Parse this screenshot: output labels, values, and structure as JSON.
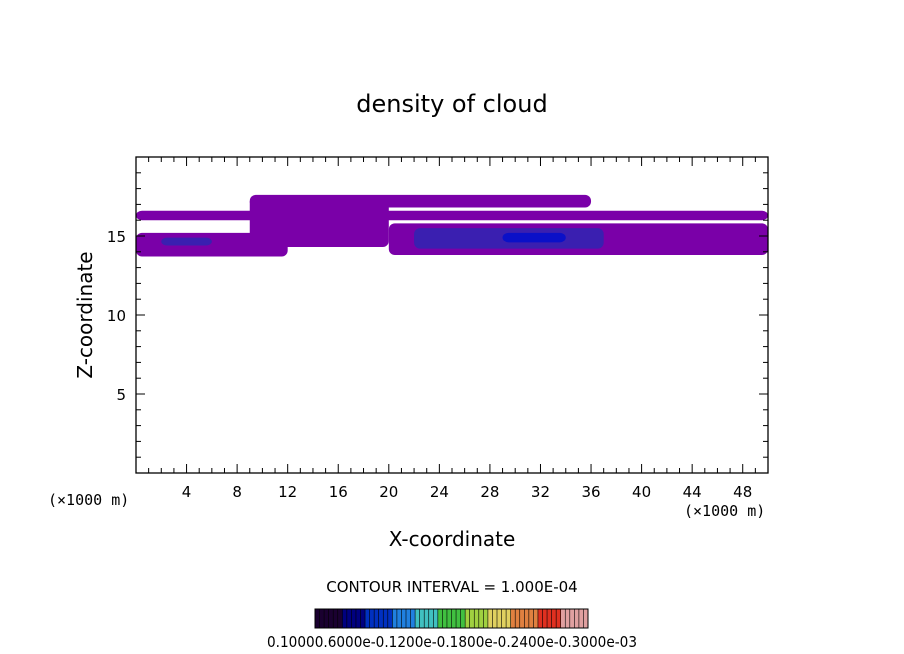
{
  "chart_data": {
    "type": "heatmap",
    "title": "density of cloud",
    "xlabel": "X-coordinate",
    "ylabel": "Z-coordinate",
    "x_unit_left": "(×1000 m)",
    "x_unit_right": "(×1000 m)",
    "xlim": [
      0,
      50
    ],
    "ylim": [
      0,
      20
    ],
    "x_ticks": [
      4,
      8,
      12,
      16,
      20,
      24,
      28,
      32,
      36,
      40,
      44,
      48
    ],
    "y_ticks": [
      5,
      10,
      15
    ],
    "contour_note": "CONTOUR INTERVAL = 1.000E-04",
    "colorbar_labels": [
      "0.1000",
      "0.6000e-04",
      "0.1200e-03",
      "0.1800e-03",
      "0.2400e-03",
      "0.3000e-03"
    ],
    "colorbar_caption": "0.10000.6000e-0.1200e-0.1800e-0.2400e-0.3000e-03",
    "colors": {
      "low": "#7a00a8",
      "mid": "#3a1fb0",
      "high": "#0a10c8",
      "colorbar": [
        "#1a0030",
        "#000080",
        "#0030c0",
        "#2080e0",
        "#40c0c0",
        "#40c040",
        "#a0d040",
        "#e0d060",
        "#e08040",
        "#e03020",
        "#e0a0a0"
      ]
    },
    "cloud_regions": [
      {
        "x": [
          0,
          50
        ],
        "z": [
          16.0,
          16.6
        ],
        "level": "low"
      },
      {
        "x": [
          9,
          36
        ],
        "z": [
          16.8,
          17.6
        ],
        "level": "low"
      },
      {
        "x": [
          0,
          12
        ],
        "z": [
          13.7,
          15.2
        ],
        "level": "low"
      },
      {
        "x": [
          9,
          20
        ],
        "z": [
          14.3,
          17.5
        ],
        "level": "low"
      },
      {
        "x": [
          20,
          50
        ],
        "z": [
          13.8,
          15.8
        ],
        "level": "low"
      },
      {
        "x": [
          2,
          6
        ],
        "z": [
          14.4,
          14.9
        ],
        "level": "mid"
      },
      {
        "x": [
          22,
          37
        ],
        "z": [
          14.2,
          15.5
        ],
        "level": "mid"
      },
      {
        "x": [
          29,
          34
        ],
        "z": [
          14.6,
          15.2
        ],
        "level": "high"
      }
    ]
  }
}
